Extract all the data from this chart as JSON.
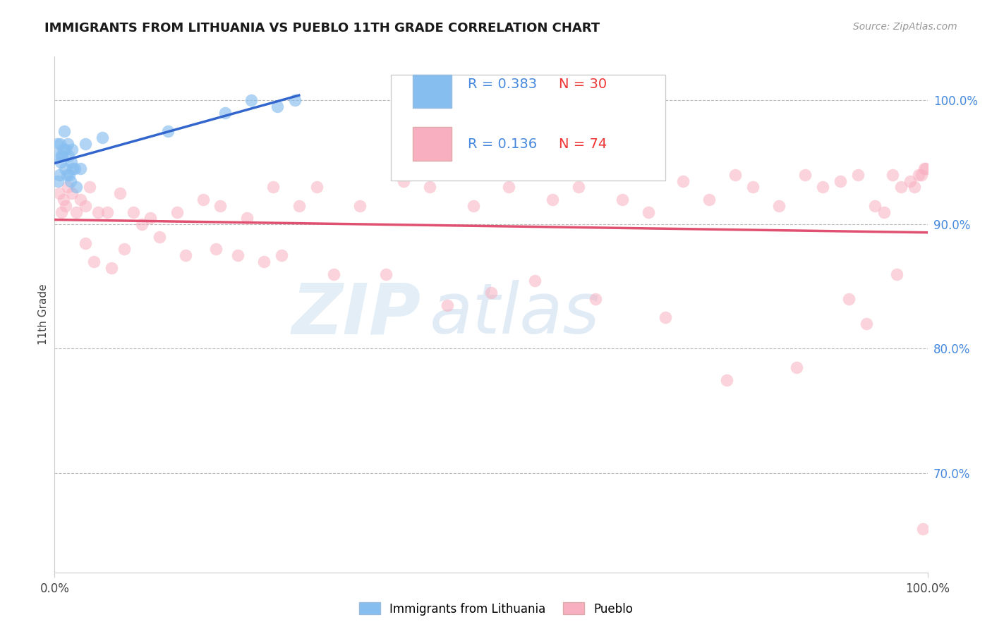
{
  "title": "IMMIGRANTS FROM LITHUANIA VS PUEBLO 11TH GRADE CORRELATION CHART",
  "source_text": "Source: ZipAtlas.com",
  "ylabel": "11th Grade",
  "xlim": [
    0.0,
    100.0
  ],
  "ylim": [
    62.0,
    103.5
  ],
  "y_tick_values_right": [
    70.0,
    80.0,
    90.0,
    100.0
  ],
  "y_tick_labels_right": [
    "70.0%",
    "80.0%",
    "90.0%",
    "100.0%"
  ],
  "legend_label1": "Immigrants from Lithuania",
  "legend_label2": "Pueblo",
  "legend_R1": "R = 0.383",
  "legend_N1": "N = 30",
  "legend_R2": "R = 0.136",
  "legend_N2": "N = 74",
  "blue_color": "#87BEF0",
  "pink_color": "#F8B0C0",
  "blue_line_color": "#3366CC",
  "pink_line_color": "#E05070",
  "watermark_zip": "ZIP",
  "watermark_atlas": "atlas",
  "blue_points_x": [
    0.2,
    0.3,
    0.4,
    0.5,
    0.6,
    0.7,
    0.8,
    0.9,
    1.0,
    1.1,
    1.2,
    1.3,
    1.4,
    1.5,
    1.6,
    1.7,
    1.8,
    1.9,
    2.0,
    2.1,
    2.3,
    2.5,
    3.0,
    3.5,
    5.5,
    13.0,
    19.5,
    22.5,
    25.5,
    27.5
  ],
  "blue_points_y": [
    95.5,
    96.5,
    93.5,
    94.0,
    96.5,
    95.0,
    95.5,
    95.5,
    96.0,
    97.5,
    94.5,
    96.0,
    94.0,
    96.5,
    95.5,
    94.0,
    93.5,
    95.0,
    96.0,
    94.5,
    94.5,
    93.0,
    94.5,
    96.5,
    97.0,
    97.5,
    99.0,
    100.0,
    99.5,
    100.0
  ],
  "pink_points_x": [
    0.5,
    0.8,
    1.0,
    1.3,
    1.5,
    2.0,
    2.5,
    3.0,
    3.5,
    4.0,
    5.0,
    6.0,
    7.5,
    9.0,
    11.0,
    14.0,
    17.0,
    19.0,
    22.0,
    25.0,
    28.0,
    30.0,
    35.0,
    40.0,
    43.0,
    48.0,
    52.0,
    57.0,
    60.0,
    65.0,
    68.0,
    72.0,
    75.0,
    78.0,
    80.0,
    83.0,
    86.0,
    88.0,
    90.0,
    92.0,
    94.0,
    95.0,
    96.0,
    97.0,
    98.0,
    98.5,
    99.0,
    99.3,
    99.6,
    99.8,
    3.5,
    4.5,
    6.5,
    8.0,
    10.0,
    12.0,
    15.0,
    18.5,
    21.0,
    24.0,
    26.0,
    32.0,
    38.0,
    45.0,
    50.0,
    55.0,
    62.0,
    70.0,
    77.0,
    85.0,
    91.0,
    93.0,
    96.5,
    99.5
  ],
  "pink_points_y": [
    92.5,
    91.0,
    92.0,
    91.5,
    93.0,
    92.5,
    91.0,
    92.0,
    91.5,
    93.0,
    91.0,
    91.0,
    92.5,
    91.0,
    90.5,
    91.0,
    92.0,
    91.5,
    90.5,
    93.0,
    91.5,
    93.0,
    91.5,
    93.5,
    93.0,
    91.5,
    93.0,
    92.0,
    93.0,
    92.0,
    91.0,
    93.5,
    92.0,
    94.0,
    93.0,
    91.5,
    94.0,
    93.0,
    93.5,
    94.0,
    91.5,
    91.0,
    94.0,
    93.0,
    93.5,
    93.0,
    94.0,
    94.0,
    94.5,
    94.5,
    88.5,
    87.0,
    86.5,
    88.0,
    90.0,
    89.0,
    87.5,
    88.0,
    87.5,
    87.0,
    87.5,
    86.0,
    86.0,
    83.5,
    84.5,
    85.5,
    84.0,
    82.5,
    77.5,
    78.5,
    84.0,
    82.0,
    86.0,
    65.5
  ]
}
